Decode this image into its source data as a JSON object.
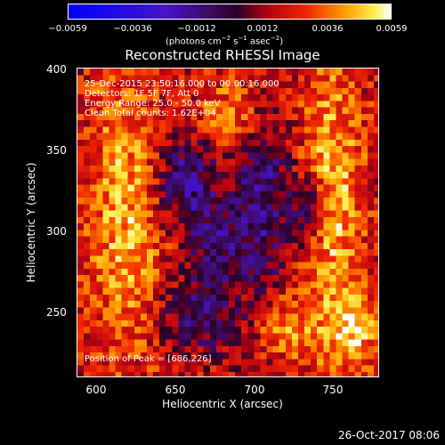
{
  "colorbar": {
    "ticks": [
      "−0.0059",
      "−0.0036",
      "−0.0012",
      "0.0012",
      "0.0036",
      "0.0059"
    ],
    "range": [
      -0.0059,
      0.0059
    ],
    "units_prefix": "(photons cm",
    "units_sup1": "−2",
    "units_mid": " s",
    "units_sup2": "−1",
    "units_mid2": " asec",
    "units_sup3": "−2",
    "units_suffix": ")"
  },
  "chart_data": {
    "type": "heatmap",
    "title": "Reconstructed RHESSI Image",
    "xlabel": "Heliocentric X (arcsec)",
    "ylabel": "Heliocentric Y (arcsec)",
    "xlim": [
      584,
      776
    ],
    "ylim": [
      206,
      402
    ],
    "x_ticks": [
      "600",
      "650",
      "700",
      "750"
    ],
    "y_ticks": [
      "250",
      "300",
      "350",
      "400"
    ],
    "annotations": [
      "25-Dec-2015 23:50:16.000 to 00:00:16.000",
      "Detectors: 1F 5F 7F, Att 0",
      "Energy Range: 25.0 - 50.0 keV",
      "Clean    Total counts: 1.62E+04"
    ],
    "peak_label": "Position of Peak = [686,226]",
    "peak_position": [
      686,
      226
    ],
    "colormap": "blue-purple-red-orange-yellow-white"
  },
  "timestamp": "26-Oct-2017 08:06",
  "colors": {
    "background": "#000000",
    "axes": "#ffffff"
  }
}
